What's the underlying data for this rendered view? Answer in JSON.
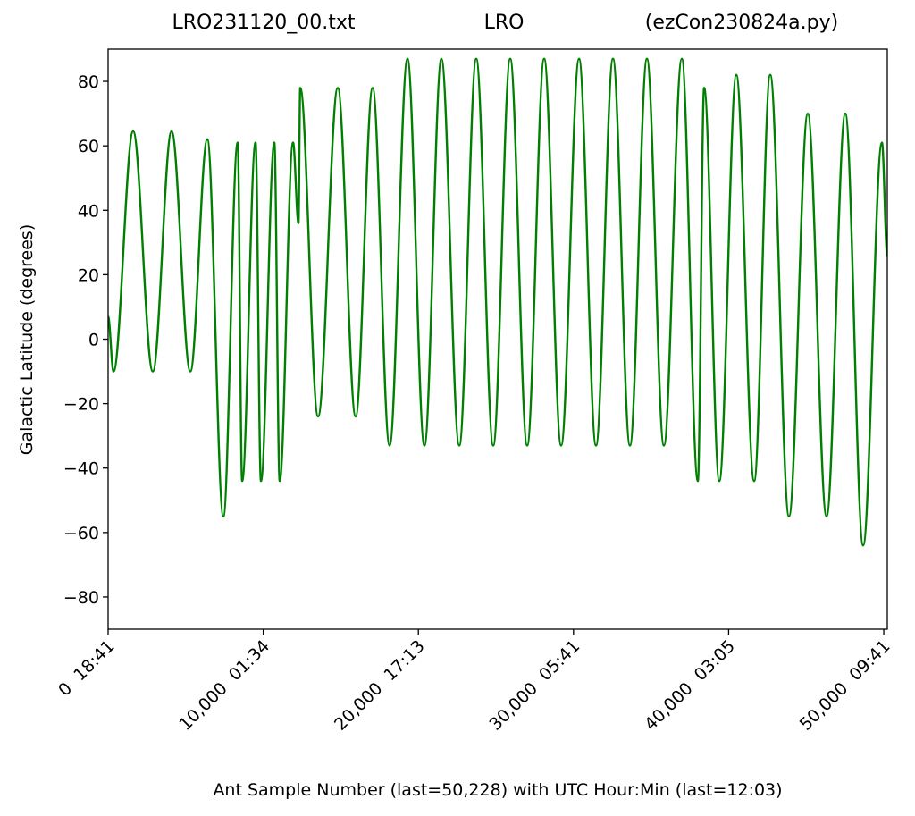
{
  "chart_data": {
    "type": "line",
    "title": [
      "LRO231120_00.txt",
      "LRO",
      "(ezCon230824a.py)"
    ],
    "xlabel": "Ant Sample Number (last=50,228) with UTC Hour:Min (last=12:03)",
    "ylabel": "Galactic Latitude (degrees)",
    "xlim": [
      0,
      50228
    ],
    "ylim": [
      -90,
      90
    ],
    "xticks": [
      {
        "value": 0,
        "label": "0  18:41"
      },
      {
        "value": 10000,
        "label": "10,000  01:34"
      },
      {
        "value": 20000,
        "label": "20,000  17:13"
      },
      {
        "value": 30000,
        "label": "30,000  05:41"
      },
      {
        "value": 40000,
        "label": "40,000  03:05"
      },
      {
        "value": 50000,
        "label": "50,000  09:41"
      }
    ],
    "yticks": [
      {
        "value": -80,
        "label": "−80"
      },
      {
        "value": -60,
        "label": "−60"
      },
      {
        "value": -40,
        "label": "−40"
      },
      {
        "value": -20,
        "label": "−20"
      },
      0,
      20,
      40,
      60,
      80
    ],
    "series": [
      {
        "name": "Galactic Latitude",
        "color": "#008000",
        "x": [
          0,
          346,
          1613,
          2880,
          4090,
          5300,
          6394,
          7430,
          8352,
          8640,
          9504,
          9850,
          10714,
          11059,
          11923,
          12270,
          12384,
          13536,
          14803,
          15955,
          17050,
          18144,
          19296,
          20390,
          21485,
          22637,
          23731,
          24826,
          25920,
          27014,
          28109,
          29203,
          30355,
          31450,
          32544,
          33638,
          34733,
          35827,
          36979,
          38016,
          38419,
          39398,
          40493,
          41645,
          42682,
          43891,
          45101,
          46310,
          47520,
          48672,
          49882,
          50228
        ],
        "values": [
          7,
          -10,
          64.5,
          -10,
          64.5,
          -10,
          62,
          -55,
          61,
          -44,
          61,
          -44,
          61,
          -44,
          61,
          36,
          78,
          -24,
          78,
          -24,
          78,
          -33,
          87,
          -33,
          87,
          -33,
          87,
          -33,
          87,
          -33,
          87,
          -33,
          87,
          -33,
          87,
          -33,
          87,
          -33,
          87,
          -44,
          78,
          -44,
          82,
          -44,
          82,
          -55,
          70,
          -55,
          70,
          -64,
          61,
          26
        ]
      }
    ]
  }
}
